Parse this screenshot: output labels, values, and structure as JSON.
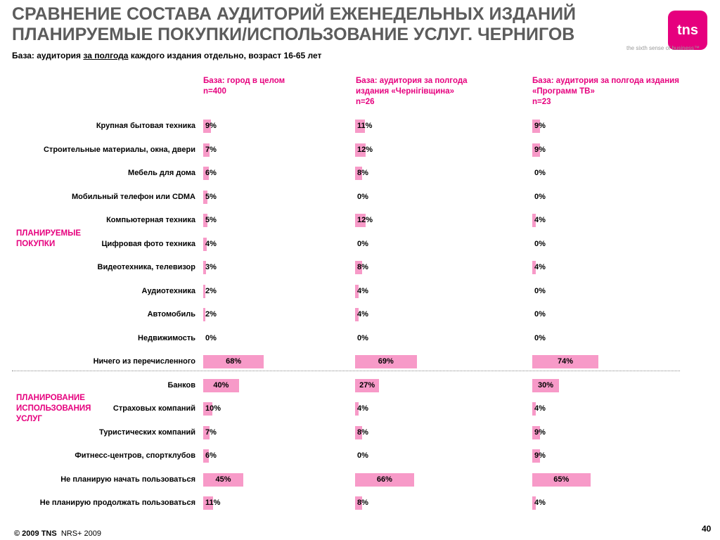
{
  "header": {
    "title_line1": "СРАВНЕНИЕ СОСТАВА АУДИТОРИЙ ЕЖЕНЕДЕЛЬНЫХ ИЗДАНИЙ",
    "title_line2": "ПЛАНИРУЕМЫЕ ПОКУПКИ/ИСПОЛЬЗОВАНИЕ УСЛУГ. ЧЕРНИГОВ",
    "subtitle_prefix": "База: аудитория ",
    "subtitle_underlined": "за полгода",
    "subtitle_suffix": " каждого издания отдельно, возраст 16-65 лет"
  },
  "logo": {
    "text": "tns",
    "tagline": "the sixth sense of business™",
    "color": "#e6007e"
  },
  "groups": {
    "purchases_line1": "ПЛАНИРУЕМЫЕ",
    "purchases_line2": "ПОКУПКИ",
    "services_line1": "ПЛАНИРОВАНИЕ",
    "services_line2": "ИСПОЛЬЗОВАНИЯ",
    "services_line3": "УСЛУГ"
  },
  "footer": {
    "copyright": "© 2009 TNS",
    "source": "NRS+ 2009",
    "page": "40"
  },
  "chart_data": {
    "type": "bar",
    "orientation": "horizontal",
    "bar_color": "#f79ac8",
    "accent_color": "#e6007e",
    "value_suffix": "%",
    "categories": [
      "Крупная бытовая техника",
      "Строительные материалы, окна, двери",
      "Мебель для дома",
      "Мобильный телефон или CDMA",
      "Компьютерная техника",
      "Цифровая фото техника",
      "Видеотехника, телевизор",
      "Аудиотехника",
      "Автомобиль",
      "Недвижимость",
      "Ничего из перечисленного",
      "Банков",
      "Страховых компаний",
      "Туристических компаний",
      "Фитнесс-центров, спортклубов",
      "Не планирую начать пользоваться",
      "Не планирую продолжать пользоваться"
    ],
    "series": [
      {
        "header_line1": "База: город в целом",
        "header_line2": "n=400",
        "header_line3": "",
        "values": [
          9,
          7,
          6,
          5,
          5,
          4,
          3,
          2,
          2,
          0,
          68,
          40,
          10,
          7,
          6,
          45,
          11
        ]
      },
      {
        "header_line1": "База: аудитория за полгода",
        "header_line2": "издания «Чернігівщина»",
        "header_line3": "n=26",
        "values": [
          11,
          12,
          8,
          0,
          12,
          0,
          8,
          4,
          4,
          0,
          69,
          27,
          4,
          8,
          0,
          66,
          8
        ]
      },
      {
        "header_line1": "База: аудитория за полгода издания",
        "header_line2": "«Программ ТВ»",
        "header_line3": "n=23",
        "values": [
          9,
          9,
          0,
          0,
          4,
          0,
          4,
          0,
          0,
          0,
          74,
          30,
          4,
          9,
          9,
          65,
          4
        ]
      }
    ]
  }
}
